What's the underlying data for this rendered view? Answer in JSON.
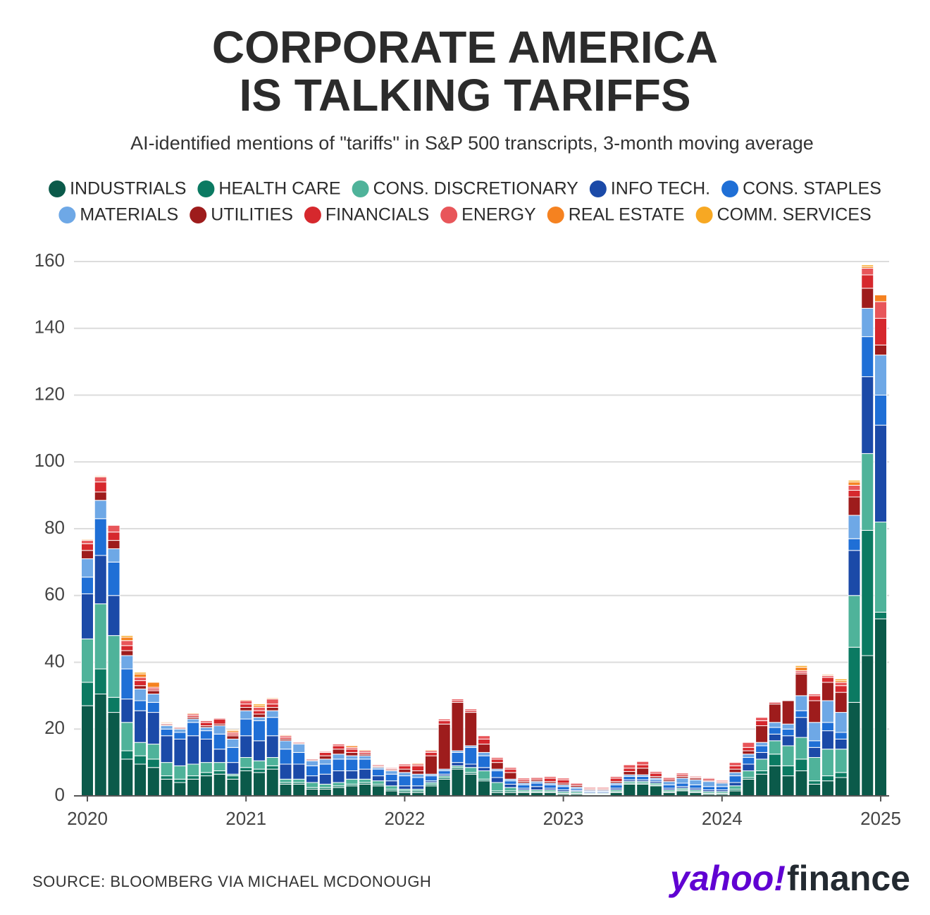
{
  "chart_data": {
    "type": "stacked_bar",
    "title": [
      "CORPORATE AMERICA",
      "IS TALKING TARIFFS"
    ],
    "subtitle": "AI-identified mentions of \"tariffs\" in S&P 500 transcripts, 3-month moving average",
    "source": "SOURCE: BLOOMBERG VIA MICHAEL MCDONOUGH",
    "logo": [
      "yahoo!",
      "finance"
    ],
    "categories": [
      "2020",
      null,
      null,
      null,
      null,
      null,
      null,
      null,
      null,
      null,
      null,
      null,
      "2021",
      null,
      null,
      null,
      null,
      null,
      null,
      null,
      null,
      null,
      null,
      null,
      "2022",
      null,
      null,
      null,
      null,
      null,
      null,
      null,
      null,
      null,
      null,
      null,
      "2023",
      null,
      null,
      null,
      null,
      null,
      null,
      null,
      null,
      null,
      null,
      null,
      "2024",
      null,
      null,
      null,
      null,
      null,
      null,
      null,
      null,
      null,
      null,
      null,
      "2025"
    ],
    "ylim": [
      0,
      160
    ],
    "yticks": [
      0,
      20,
      40,
      60,
      80,
      100,
      120,
      140,
      160
    ],
    "grid": true,
    "series": [
      {
        "name": "INDUSTRIALS",
        "color": "#0b5a4a",
        "values": [
          27,
          30.5,
          25,
          11,
          9.5,
          8.5,
          5,
          4,
          5,
          6,
          6.5,
          5,
          7.5,
          7,
          8,
          3.5,
          3.5,
          2,
          2,
          2.5,
          3,
          3.5,
          3,
          1.5,
          1,
          1,
          3,
          5,
          8,
          6.5,
          4.5,
          1,
          1,
          1,
          1,
          1,
          0.5,
          0.5,
          0.3,
          0.3,
          1,
          3.5,
          3.5,
          3,
          1,
          1.5,
          1,
          0.5,
          0.5,
          1.5,
          5,
          6.5,
          9,
          6,
          7.5,
          3.5,
          4.5,
          5.5,
          28,
          42,
          53
        ]
      },
      {
        "name": "HEALTH CARE",
        "color": "#0b7a62",
        "values": [
          7,
          7.5,
          4.5,
          2.5,
          2.5,
          2.5,
          1,
          1,
          1,
          1,
          1,
          1,
          1,
          1,
          1,
          0.5,
          0.5,
          0.5,
          0.5,
          0.5,
          0.5,
          0.5,
          0.5,
          0.5,
          0.5,
          0.5,
          0.5,
          0.5,
          0.5,
          0.5,
          0.5,
          0.5,
          0.5,
          0.3,
          0.3,
          0.3,
          0.3,
          0.3,
          0.2,
          0.2,
          0.3,
          0.3,
          0.3,
          0.3,
          0.3,
          0.3,
          0.3,
          0.3,
          0.3,
          0.5,
          0.5,
          1,
          3.5,
          3,
          3.5,
          1,
          1.5,
          1.5,
          16.5,
          37.5,
          2
        ]
      },
      {
        "name": "CONS. DISCRETIONARY",
        "color": "#4fb39a",
        "values": [
          13,
          19.5,
          18.5,
          8.5,
          4,
          4.5,
          4,
          4,
          3.5,
          3,
          2.5,
          0.5,
          3,
          2.5,
          2.5,
          1,
          1,
          1.5,
          1,
          1,
          1.5,
          1,
          1,
          1,
          0.5,
          0.5,
          0.5,
          0.5,
          0.5,
          1.5,
          2.5,
          2.5,
          1,
          0.5,
          0.5,
          0.5,
          0.5,
          0.5,
          0.3,
          0.3,
          0.5,
          0.5,
          0.5,
          0.5,
          0.5,
          0.5,
          0.5,
          0.5,
          0.5,
          1,
          2,
          3.5,
          4,
          6,
          6.5,
          7,
          8,
          7,
          15.5,
          23,
          27
        ]
      },
      {
        "name": "INFO TECH.",
        "color": "#1b4aa8",
        "values": [
          13.5,
          14.5,
          12,
          7,
          9.5,
          9.5,
          8,
          8,
          8.5,
          7,
          4,
          3.5,
          6.5,
          6,
          6.5,
          4.5,
          4.5,
          2,
          3,
          3.5,
          2.5,
          3,
          1.5,
          1.5,
          1,
          1,
          0.5,
          0.5,
          1,
          1,
          1,
          1.5,
          1,
          0.5,
          1,
          0.5,
          0.5,
          0.3,
          0.3,
          0.3,
          0.5,
          0.5,
          0.5,
          0.5,
          0.5,
          0.5,
          0.5,
          0.5,
          0.5,
          1,
          2,
          2,
          2,
          3,
          6,
          3,
          5.5,
          3,
          13.5,
          23,
          29
        ]
      },
      {
        "name": "CONS. STAPLES",
        "color": "#1f6fd6",
        "values": [
          5,
          11,
          10,
          9,
          3,
          3,
          2,
          2,
          4,
          2.5,
          4.5,
          4.5,
          5,
          6,
          5.5,
          4.5,
          3.5,
          3,
          3,
          3.5,
          3.5,
          3,
          2,
          2,
          3,
          2.5,
          1.5,
          1,
          3,
          5,
          3.5,
          2,
          1,
          1,
          1,
          1,
          1,
          0.5,
          0.3,
          0.3,
          1,
          1,
          1,
          0.5,
          1,
          1,
          1,
          1,
          1,
          2,
          2,
          2,
          2,
          2,
          2,
          2,
          2.5,
          2,
          3.5,
          12,
          9
        ]
      },
      {
        "name": "MATERIALS",
        "color": "#6ea8e6",
        "values": [
          5.5,
          5.5,
          4,
          4,
          3.5,
          2.5,
          1,
          1,
          1,
          1,
          2.5,
          2.5,
          2.5,
          1,
          2,
          2.5,
          2.5,
          1.5,
          1.5,
          1.5,
          1,
          1,
          0.5,
          1,
          1,
          1,
          0.5,
          0.5,
          0.5,
          0.5,
          1,
          0.5,
          0.5,
          0.5,
          0.5,
          0.5,
          0.5,
          0.5,
          0.3,
          0.3,
          0.5,
          0.5,
          0.5,
          0.5,
          1,
          1.5,
          1.5,
          1.5,
          1,
          1,
          1,
          1,
          1.5,
          1.5,
          4.5,
          5.5,
          6.5,
          6,
          7,
          8.5,
          12
        ]
      },
      {
        "name": "UTILITIES",
        "color": "#9e1c1c",
        "values": [
          2.5,
          2.5,
          2.5,
          1.5,
          1,
          1,
          0.3,
          0.3,
          0.5,
          0.5,
          0.5,
          1,
          1,
          1,
          1,
          0.5,
          0.3,
          0.3,
          1,
          1.5,
          1,
          0.5,
          0.3,
          0.3,
          1,
          1,
          5.5,
          13.5,
          14.5,
          10,
          2.5,
          2,
          2,
          0.5,
          0.5,
          0.5,
          0.5,
          0.5,
          0.3,
          0.3,
          0.5,
          1,
          2,
          0.5,
          0.5,
          0.5,
          0.5,
          0.3,
          0.3,
          1,
          1,
          5,
          5.5,
          7,
          6.5,
          6.5,
          5.5,
          6,
          5.5,
          6,
          3
        ]
      },
      {
        "name": "FINANCIALS",
        "color": "#d6282d",
        "values": [
          2,
          3,
          2.5,
          1.5,
          1.5,
          0.5,
          0.3,
          0.3,
          0.5,
          1,
          1.5,
          0.5,
          1,
          1,
          1,
          0.5,
          0.3,
          0.3,
          1,
          1,
          1,
          0.5,
          0.3,
          0.3,
          1,
          1.5,
          1,
          1,
          0.5,
          0.5,
          1.5,
          1,
          1,
          0.5,
          0.5,
          1,
          1,
          0.5,
          0.3,
          0.3,
          1,
          1,
          1,
          1,
          0.5,
          0.5,
          0.3,
          0.5,
          0.3,
          1,
          1,
          1.5,
          0.5,
          0,
          0.5,
          1.5,
          1.5,
          2,
          2,
          4,
          8
        ]
      },
      {
        "name": "ENERGY",
        "color": "#e8565a",
        "values": [
          1,
          1.5,
          2,
          1.5,
          1,
          0.5,
          0.2,
          0.2,
          0.5,
          0.5,
          0.3,
          0.5,
          1,
          1,
          1.5,
          0.5,
          0.2,
          0.2,
          0.3,
          0.5,
          0.5,
          0.5,
          0.3,
          0.3,
          0.5,
          0.5,
          0.5,
          0.5,
          0.5,
          0.5,
          1,
          0.5,
          0.5,
          0.5,
          0.3,
          0.5,
          0.5,
          0.3,
          0.3,
          0.3,
          0.5,
          1,
          1,
          0.5,
          0.3,
          0.5,
          0.3,
          0.3,
          0.3,
          1,
          1.5,
          1,
          0,
          0,
          0.5,
          0.5,
          0.5,
          1,
          1.5,
          2,
          5
        ]
      },
      {
        "name": "REAL ESTATE",
        "color": "#f58220",
        "values": [
          0.3,
          0.3,
          0,
          1,
          1,
          1.5,
          0.3,
          0.2,
          0.3,
          0,
          0,
          0.5,
          0.3,
          0.5,
          0.3,
          0.3,
          0,
          0.2,
          0,
          0,
          0.5,
          0.3,
          0,
          0,
          0,
          0.3,
          0.3,
          0,
          0,
          0,
          0,
          0,
          0,
          0,
          0,
          0,
          0,
          0,
          0,
          0,
          0,
          0,
          0,
          0,
          0,
          0,
          0,
          0,
          0,
          0,
          0,
          0,
          0,
          0,
          1,
          0,
          0.3,
          0.5,
          1,
          0.5,
          2
        ]
      },
      {
        "name": "COMM. SERVICES",
        "color": "#f7a823",
        "values": [
          0.2,
          0.2,
          0,
          0.5,
          0.5,
          0,
          0.2,
          0,
          0.2,
          0,
          0,
          0.3,
          0.2,
          0.5,
          0,
          0.2,
          0,
          0,
          0,
          0,
          0,
          0,
          0,
          0,
          0,
          0,
          0,
          0,
          0,
          0,
          0,
          0,
          0,
          0,
          0,
          0,
          0,
          0,
          0,
          0,
          0,
          0,
          0,
          0,
          0,
          0,
          0,
          0,
          0,
          0,
          0,
          0,
          0,
          0,
          0.5,
          0,
          0.2,
          0.5,
          0.5,
          0.5,
          0
        ]
      }
    ]
  }
}
